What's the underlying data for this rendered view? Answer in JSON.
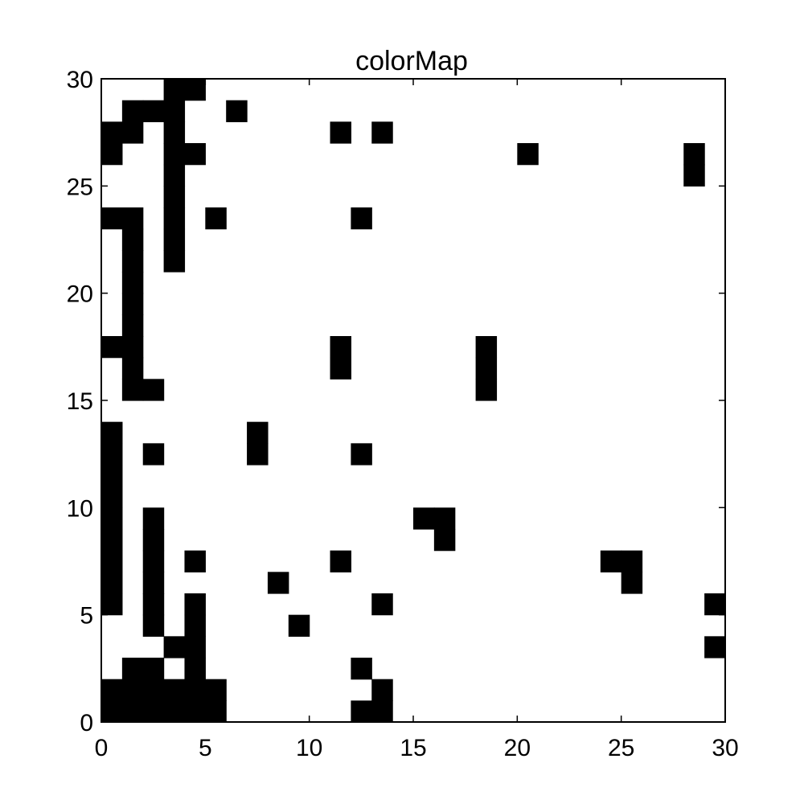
{
  "chart_data": {
    "type": "heatmap",
    "title": "colorMap",
    "xlabel": "",
    "ylabel": "",
    "xlim": [
      0,
      30
    ],
    "ylim": [
      0,
      30
    ],
    "x_ticks": [
      0,
      5,
      10,
      15,
      20,
      25,
      30
    ],
    "y_ticks": [
      0,
      5,
      10,
      15,
      20,
      25,
      30
    ],
    "grid": false,
    "colors": {
      "filled": "#000000",
      "empty": "#ffffff"
    },
    "cell_value_filled": 1,
    "filled_cells": [
      [
        0,
        0
      ],
      [
        1,
        0
      ],
      [
        2,
        0
      ],
      [
        3,
        0
      ],
      [
        4,
        0
      ],
      [
        5,
        0
      ],
      [
        12,
        0
      ],
      [
        13,
        0
      ],
      [
        0,
        1
      ],
      [
        1,
        1
      ],
      [
        2,
        1
      ],
      [
        3,
        1
      ],
      [
        4,
        1
      ],
      [
        5,
        1
      ],
      [
        13,
        1
      ],
      [
        1,
        2
      ],
      [
        2,
        2
      ],
      [
        4,
        2
      ],
      [
        12,
        2
      ],
      [
        3,
        3
      ],
      [
        4,
        3
      ],
      [
        29,
        3
      ],
      [
        2,
        4
      ],
      [
        4,
        4
      ],
      [
        9,
        4
      ],
      [
        0,
        5
      ],
      [
        2,
        5
      ],
      [
        4,
        5
      ],
      [
        13,
        5
      ],
      [
        29,
        5
      ],
      [
        0,
        6
      ],
      [
        2,
        6
      ],
      [
        8,
        6
      ],
      [
        25,
        6
      ],
      [
        0,
        7
      ],
      [
        2,
        7
      ],
      [
        4,
        7
      ],
      [
        11,
        7
      ],
      [
        24,
        7
      ],
      [
        25,
        7
      ],
      [
        0,
        8
      ],
      [
        2,
        8
      ],
      [
        16,
        8
      ],
      [
        0,
        9
      ],
      [
        2,
        9
      ],
      [
        15,
        9
      ],
      [
        16,
        9
      ],
      [
        0,
        10
      ],
      [
        0,
        11
      ],
      [
        0,
        12
      ],
      [
        2,
        12
      ],
      [
        7,
        12
      ],
      [
        12,
        12
      ],
      [
        0,
        13
      ],
      [
        7,
        13
      ],
      [
        1,
        15
      ],
      [
        2,
        15
      ],
      [
        18,
        15
      ],
      [
        1,
        16
      ],
      [
        11,
        16
      ],
      [
        18,
        16
      ],
      [
        0,
        17
      ],
      [
        1,
        17
      ],
      [
        11,
        17
      ],
      [
        18,
        17
      ],
      [
        1,
        18
      ],
      [
        1,
        19
      ],
      [
        1,
        20
      ],
      [
        1,
        21
      ],
      [
        3,
        21
      ],
      [
        1,
        22
      ],
      [
        3,
        22
      ],
      [
        0,
        23
      ],
      [
        1,
        23
      ],
      [
        3,
        23
      ],
      [
        5,
        23
      ],
      [
        12,
        23
      ],
      [
        3,
        24
      ],
      [
        3,
        25
      ],
      [
        28,
        25
      ],
      [
        0,
        26
      ],
      [
        3,
        26
      ],
      [
        4,
        26
      ],
      [
        20,
        26
      ],
      [
        28,
        26
      ],
      [
        0,
        27
      ],
      [
        1,
        27
      ],
      [
        3,
        27
      ],
      [
        11,
        27
      ],
      [
        13,
        27
      ],
      [
        1,
        28
      ],
      [
        2,
        28
      ],
      [
        3,
        28
      ],
      [
        6,
        28
      ],
      [
        3,
        29
      ],
      [
        4,
        29
      ]
    ]
  }
}
